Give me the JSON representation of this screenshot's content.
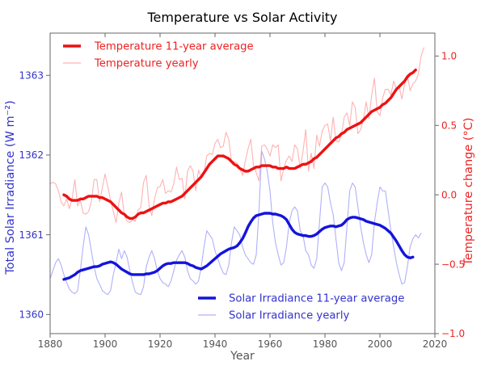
{
  "title": "Temperature vs Solar Activity",
  "colors": {
    "temp_avg": "#ee1111",
    "temp_yearly": "#ffb2b2",
    "tsi_avg": "#1414dc",
    "tsi_yearly": "#b0b0fa",
    "left_axis_text": "#3333cc",
    "right_axis_text": "#ee2222",
    "x_tick_text": "#555555",
    "title_text": "#000000",
    "spine": "#666666"
  },
  "axes": {
    "x": {
      "label": "Year",
      "range": [
        1880,
        2020
      ],
      "tick_labels": [
        "1880",
        "1900",
        "1920",
        "1940",
        "1960",
        "1980",
        "2000",
        "2020"
      ],
      "tick_values": [
        1880,
        1900,
        1920,
        1940,
        1960,
        1980,
        2000,
        2020
      ]
    },
    "y_left": {
      "label": "Total Solar Irradiance (W m⁻²)",
      "range": [
        1359.76,
        1363.53
      ],
      "tick_labels": [
        "1360",
        "1361",
        "1362",
        "1363"
      ],
      "tick_values": [
        1360,
        1361,
        1362,
        1363
      ]
    },
    "y_right": {
      "label": "Temperature change (°C)",
      "range": [
        -1.0,
        1.165
      ],
      "tick_labels": [
        "−1.0",
        "−0.5",
        "0.0",
        "0.5",
        "1.0"
      ],
      "tick_values": [
        -1.0,
        -0.5,
        0.0,
        0.5,
        1.0
      ]
    }
  },
  "legends": {
    "top": [
      {
        "label": "Temperature 11-year average",
        "style": "thick"
      },
      {
        "label": "Temperature yearly",
        "style": "thin"
      }
    ],
    "bottom": [
      {
        "label": "Solar Irradiance 11-year average",
        "style": "thick"
      },
      {
        "label": "Solar Irradiance yearly",
        "style": "thin"
      }
    ]
  },
  "chart_data": {
    "type": "line",
    "xlabel": "Year",
    "x_range": [
      1880,
      2020
    ],
    "grid": false,
    "series": [
      {
        "name": "Temperature yearly",
        "axis": "right",
        "color_key": "temp_yearly",
        "width": 1.1,
        "start_year": 1880,
        "step": 1,
        "values": [
          0.08,
          0.09,
          0.08,
          0.03,
          -0.05,
          -0.08,
          -0.03,
          -0.1,
          -0.03,
          0.11,
          -0.08,
          -0.04,
          -0.13,
          -0.14,
          -0.12,
          -0.05,
          0.11,
          0.11,
          -0.05,
          0.05,
          0.15,
          0.06,
          -0.04,
          -0.12,
          -0.2,
          -0.06,
          0.02,
          -0.15,
          -0.19,
          -0.2,
          -0.18,
          -0.19,
          -0.11,
          -0.09,
          0.09,
          0.14,
          -0.08,
          -0.15,
          -0.03,
          0.05,
          0.06,
          0.11,
          0.01,
          0.03,
          0.02,
          0.08,
          0.2,
          0.11,
          0.12,
          -0.03,
          0.17,
          0.21,
          0.17,
          0.03,
          0.18,
          0.12,
          0.16,
          0.28,
          0.3,
          0.29,
          0.37,
          0.4,
          0.34,
          0.35,
          0.45,
          0.4,
          0.24,
          0.24,
          0.23,
          0.19,
          0.14,
          0.24,
          0.33,
          0.4,
          0.21,
          0.16,
          0.1,
          0.35,
          0.36,
          0.33,
          0.28,
          0.36,
          0.34,
          0.36,
          0.1,
          0.19,
          0.25,
          0.28,
          0.24,
          0.36,
          0.33,
          0.19,
          0.31,
          0.47,
          0.17,
          0.3,
          0.19,
          0.43,
          0.35,
          0.46,
          0.5,
          0.51,
          0.39,
          0.56,
          0.39,
          0.38,
          0.43,
          0.56,
          0.59,
          0.5,
          0.67,
          0.63,
          0.44,
          0.47,
          0.54,
          0.67,
          0.55,
          0.72,
          0.84,
          0.6,
          0.57,
          0.7,
          0.76,
          0.76,
          0.72,
          0.82,
          0.76,
          0.78,
          0.69,
          0.8,
          0.86,
          0.75,
          0.8,
          0.82,
          0.87,
          1.0,
          1.06
        ]
      },
      {
        "name": "Solar Irradiance yearly",
        "axis": "left",
        "color_key": "tsi_yearly",
        "width": 1.1,
        "start_year": 1880,
        "step": 1,
        "values": [
          1360.45,
          1360.55,
          1360.65,
          1360.7,
          1360.62,
          1360.5,
          1360.4,
          1360.32,
          1360.28,
          1360.26,
          1360.3,
          1360.55,
          1360.85,
          1361.1,
          1361.0,
          1360.8,
          1360.6,
          1360.45,
          1360.38,
          1360.3,
          1360.27,
          1360.25,
          1360.3,
          1360.5,
          1360.65,
          1360.82,
          1360.7,
          1360.8,
          1360.72,
          1360.55,
          1360.4,
          1360.28,
          1360.26,
          1360.25,
          1360.35,
          1360.6,
          1360.72,
          1360.8,
          1360.7,
          1360.55,
          1360.45,
          1360.4,
          1360.38,
          1360.35,
          1360.42,
          1360.55,
          1360.68,
          1360.75,
          1360.8,
          1360.72,
          1360.55,
          1360.45,
          1360.42,
          1360.38,
          1360.42,
          1360.6,
          1360.85,
          1361.05,
          1361.0,
          1360.95,
          1360.8,
          1360.7,
          1360.6,
          1360.52,
          1360.5,
          1360.62,
          1360.9,
          1361.1,
          1361.05,
          1361.0,
          1360.85,
          1360.75,
          1360.7,
          1360.65,
          1360.63,
          1360.75,
          1361.3,
          1362.05,
          1361.95,
          1361.8,
          1361.55,
          1361.15,
          1360.9,
          1360.75,
          1360.62,
          1360.65,
          1360.85,
          1361.15,
          1361.3,
          1361.35,
          1361.3,
          1361.05,
          1361.0,
          1360.8,
          1360.75,
          1360.62,
          1360.58,
          1360.7,
          1361.15,
          1361.6,
          1361.65,
          1361.6,
          1361.4,
          1361.25,
          1360.95,
          1360.65,
          1360.55,
          1360.65,
          1361.1,
          1361.55,
          1361.65,
          1361.6,
          1361.35,
          1361.1,
          1360.9,
          1360.75,
          1360.65,
          1360.75,
          1361.15,
          1361.4,
          1361.6,
          1361.55,
          1361.55,
          1361.3,
          1361.05,
          1360.85,
          1360.65,
          1360.5,
          1360.38,
          1360.4,
          1360.6,
          1360.85,
          1360.95,
          1361.0,
          1360.96,
          1361.02
        ]
      },
      {
        "name": "Solar Irradiance 11-year average",
        "axis": "left",
        "color_key": "tsi_avg",
        "width": 3.4,
        "start_year": 1885,
        "step": 1,
        "values": [
          1360.44,
          1360.45,
          1360.46,
          1360.48,
          1360.5,
          1360.53,
          1360.55,
          1360.56,
          1360.57,
          1360.58,
          1360.59,
          1360.6,
          1360.6,
          1360.61,
          1360.63,
          1360.64,
          1360.65,
          1360.66,
          1360.65,
          1360.63,
          1360.6,
          1360.57,
          1360.55,
          1360.53,
          1360.51,
          1360.5,
          1360.5,
          1360.5,
          1360.5,
          1360.5,
          1360.51,
          1360.51,
          1360.52,
          1360.53,
          1360.55,
          1360.58,
          1360.61,
          1360.63,
          1360.64,
          1360.64,
          1360.65,
          1360.65,
          1360.65,
          1360.65,
          1360.65,
          1360.64,
          1360.62,
          1360.61,
          1360.59,
          1360.58,
          1360.57,
          1360.59,
          1360.61,
          1360.64,
          1360.67,
          1360.7,
          1360.73,
          1360.76,
          1360.78,
          1360.8,
          1360.82,
          1360.83,
          1360.84,
          1360.86,
          1360.9,
          1360.95,
          1361.02,
          1361.1,
          1361.16,
          1361.21,
          1361.24,
          1361.25,
          1361.26,
          1361.27,
          1361.27,
          1361.27,
          1361.26,
          1361.26,
          1361.25,
          1361.24,
          1361.22,
          1361.19,
          1361.13,
          1361.07,
          1361.03,
          1361.01,
          1361.0,
          1360.99,
          1360.99,
          1360.98,
          1360.98,
          1360.99,
          1361.01,
          1361.04,
          1361.07,
          1361.09,
          1361.1,
          1361.11,
          1361.11,
          1361.1,
          1361.11,
          1361.12,
          1361.15,
          1361.19,
          1361.21,
          1361.22,
          1361.22,
          1361.21,
          1361.2,
          1361.19,
          1361.17,
          1361.16,
          1361.15,
          1361.14,
          1361.13,
          1361.12,
          1361.1,
          1361.08,
          1361.05,
          1361.02,
          1360.97,
          1360.92,
          1360.86,
          1360.8,
          1360.75,
          1360.72,
          1360.71,
          1360.72
        ]
      },
      {
        "name": "Temperature 11-year average",
        "axis": "right",
        "color_key": "temp_avg",
        "width": 3.4,
        "start_year": 1885,
        "step": 1,
        "values": [
          0.0,
          -0.01,
          -0.03,
          -0.04,
          -0.04,
          -0.04,
          -0.03,
          -0.03,
          -0.02,
          -0.01,
          -0.01,
          -0.01,
          -0.01,
          -0.02,
          -0.02,
          -0.03,
          -0.04,
          -0.05,
          -0.07,
          -0.09,
          -0.11,
          -0.13,
          -0.14,
          -0.16,
          -0.17,
          -0.17,
          -0.16,
          -0.14,
          -0.13,
          -0.13,
          -0.12,
          -0.11,
          -0.1,
          -0.09,
          -0.08,
          -0.07,
          -0.06,
          -0.06,
          -0.05,
          -0.05,
          -0.04,
          -0.03,
          -0.02,
          -0.01,
          0.01,
          0.03,
          0.05,
          0.07,
          0.09,
          0.11,
          0.13,
          0.16,
          0.19,
          0.22,
          0.24,
          0.26,
          0.28,
          0.28,
          0.28,
          0.27,
          0.26,
          0.24,
          0.22,
          0.21,
          0.19,
          0.18,
          0.17,
          0.17,
          0.18,
          0.19,
          0.2,
          0.2,
          0.21,
          0.21,
          0.21,
          0.21,
          0.2,
          0.2,
          0.19,
          0.19,
          0.19,
          0.2,
          0.19,
          0.19,
          0.19,
          0.2,
          0.21,
          0.22,
          0.22,
          0.23,
          0.24,
          0.26,
          0.27,
          0.29,
          0.31,
          0.33,
          0.35,
          0.37,
          0.39,
          0.41,
          0.42,
          0.44,
          0.45,
          0.47,
          0.48,
          0.49,
          0.5,
          0.51,
          0.52,
          0.54,
          0.56,
          0.58,
          0.6,
          0.61,
          0.62,
          0.63,
          0.65,
          0.66,
          0.68,
          0.7,
          0.73,
          0.76,
          0.78,
          0.8,
          0.82,
          0.85,
          0.87,
          0.88,
          0.9
        ]
      }
    ]
  }
}
